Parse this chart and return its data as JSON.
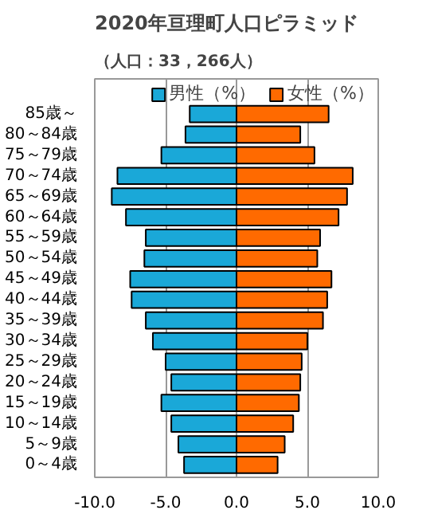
{
  "chart_data": {
    "type": "bar",
    "orientation": "horizontal",
    "stacked": true,
    "title": "2020年亘理町人口ピラミッド",
    "subtitle": "（人口：33，266人）",
    "categories": [
      "85歳～",
      "80～84歳",
      "75～79歳",
      "70～74歳",
      "65～69歳",
      "60～64歳",
      "55～59歳",
      "50～54歳",
      "45～49歳",
      "40～44歳",
      "35～39歳",
      "30～34歳",
      "25～29歳",
      "20～24歳",
      "15～19歳",
      "10～14歳",
      "5～9歳",
      "0～4歳"
    ],
    "series": [
      {
        "name": "男性（%）",
        "color": "#1aa8d8",
        "values": [
          -3.3,
          -3.6,
          -5.3,
          -8.4,
          -8.8,
          -7.8,
          -6.4,
          -6.5,
          -7.5,
          -7.4,
          -6.4,
          -5.9,
          -5.0,
          -4.6,
          -5.3,
          -4.6,
          -4.1,
          -3.7
        ]
      },
      {
        "name": "女性（%）",
        "color": "#ff6a00",
        "values": [
          6.5,
          4.5,
          5.5,
          8.2,
          7.8,
          7.2,
          5.9,
          5.7,
          6.7,
          6.4,
          6.1,
          5.0,
          4.6,
          4.5,
          4.4,
          4.0,
          3.4,
          2.9
        ]
      }
    ],
    "xlim": [
      -10,
      10
    ],
    "xticks": [
      {
        "value": -10,
        "label": "-10.0"
      },
      {
        "value": -5,
        "label": "-5.0"
      },
      {
        "value": 0,
        "label": "0.0"
      },
      {
        "value": 5,
        "label": "5.0"
      },
      {
        "value": 10,
        "label": "10.0"
      }
    ],
    "grid": "x",
    "legend": "top right"
  }
}
